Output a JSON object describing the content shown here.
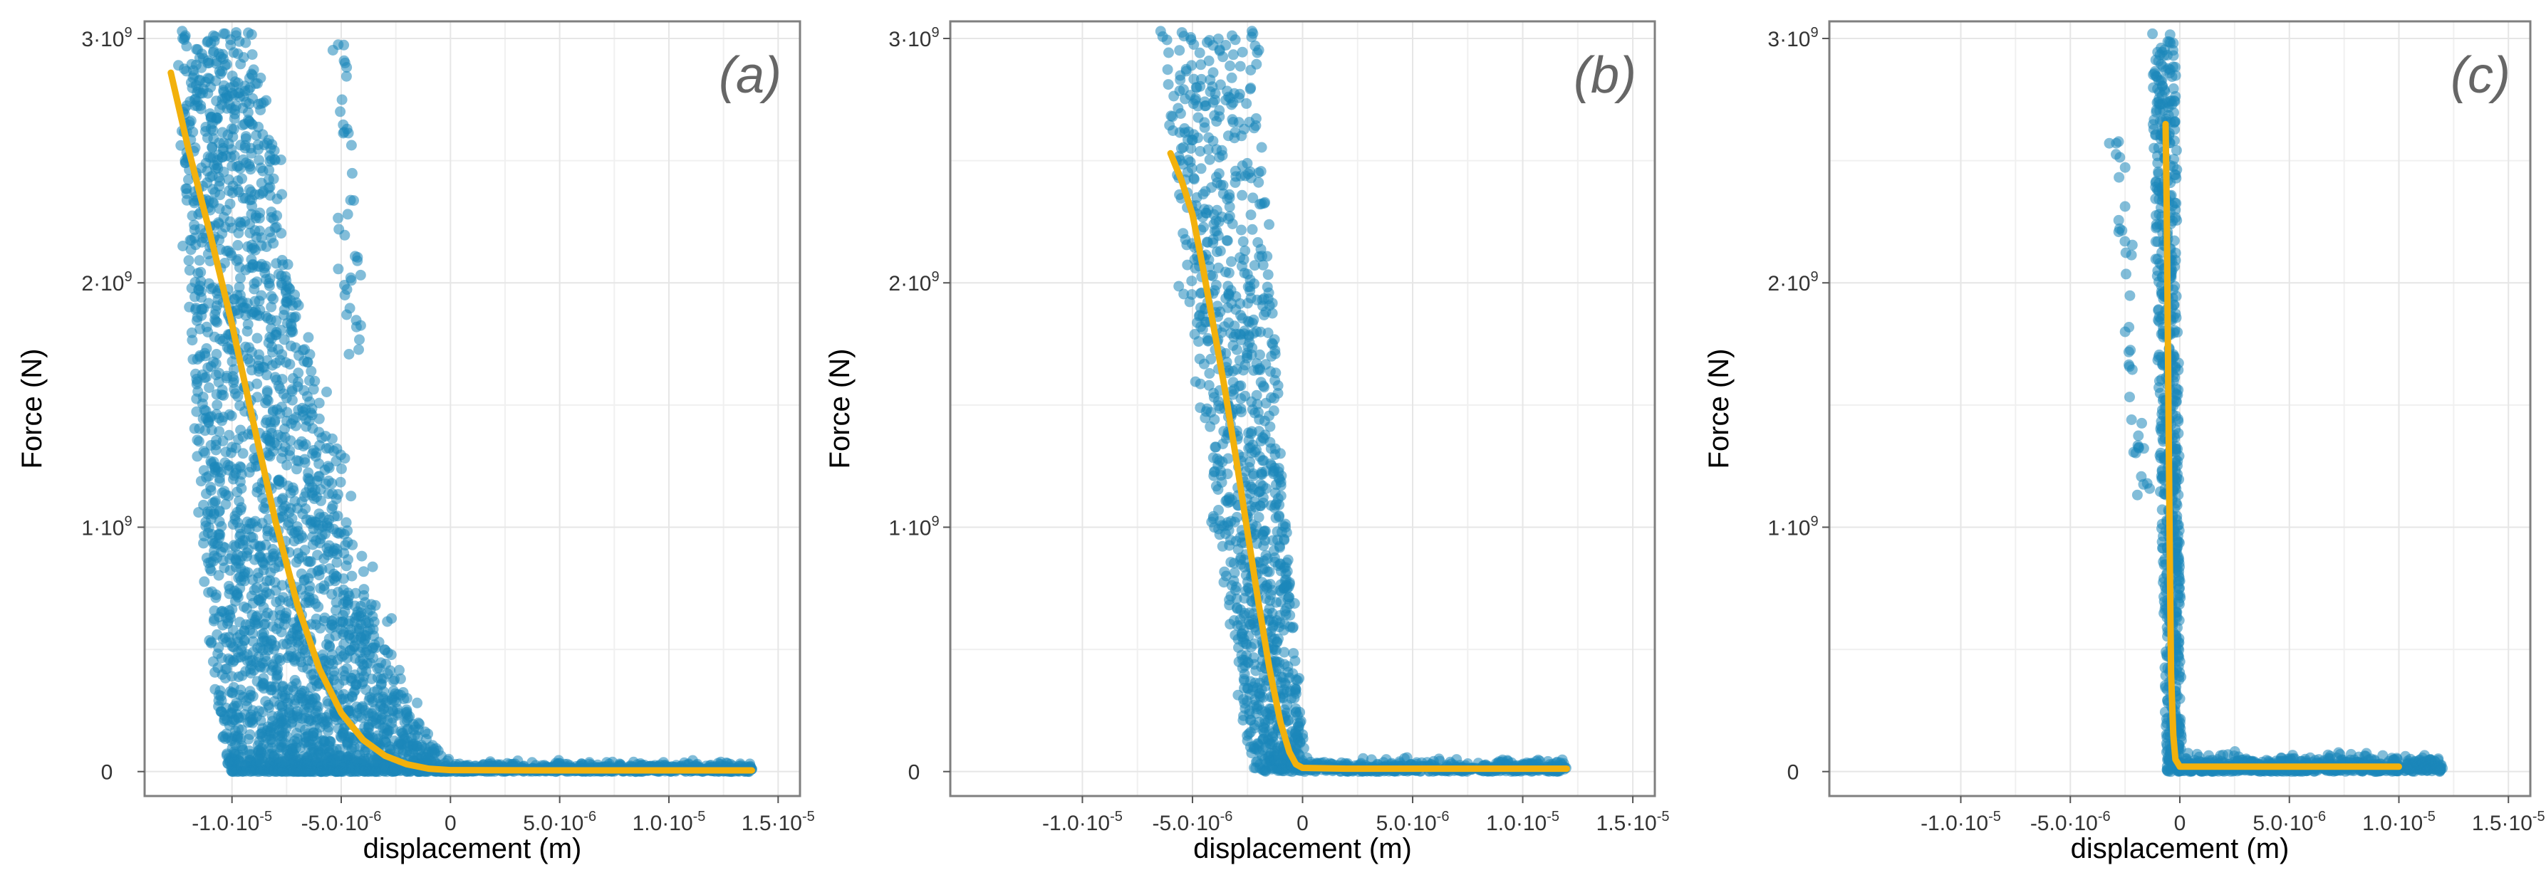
{
  "chart_data": [
    {
      "type": "scatter",
      "panel_label": "(a)",
      "xlabel": "displacement (m)",
      "ylabel": "Force (N)",
      "xlim": [
        -1.4e-05,
        1.6e-05
      ],
      "ylim": [
        -100000000.0,
        3070000000.0
      ],
      "grid": true,
      "x_ticks": [
        {
          "value": -1e-05,
          "label": "-1.0·10⁻⁵"
        },
        {
          "value": -5e-06,
          "label": "-5.0·10⁻⁶"
        },
        {
          "value": 0,
          "label": "0"
        },
        {
          "value": 5e-06,
          "label": "5.0·10⁻⁶"
        },
        {
          "value": 1e-05,
          "label": "1.0·10⁻⁵"
        },
        {
          "value": 1.5e-05,
          "label": "1.5·10⁻⁵"
        }
      ],
      "y_ticks": [
        {
          "value": 0,
          "label": "0"
        },
        {
          "value": 1000000000.0,
          "label": "1·10⁹"
        },
        {
          "value": 2000000000.0,
          "label": "2·10⁹"
        },
        {
          "value": 3000000000.0,
          "label": "3·10⁹"
        }
      ],
      "point_color": "#1b87ba",
      "fit_color": "#f2b10c",
      "point_cloud": {
        "loading_branch": {
          "count": 2600,
          "force_max": 3000000000.0,
          "x_at_force_max": [
            -1.25e-05,
            -9e-06
          ],
          "x_at_zero_force": [
            -1e-05,
            1e-06
          ],
          "shape_exponent": 1.9
        },
        "outlier_branch": {
          "count": 40,
          "x_at_force_max": -5e-06,
          "x_at_zero_force": -4.5e-06,
          "force_range": [
            1700000000.0,
            3000000000.0
          ]
        },
        "flat_branch": {
          "count": 700,
          "x_range": [
            0,
            1.38e-05
          ],
          "force_range": [
            0,
            40000000.0
          ]
        }
      },
      "fit_line": {
        "x": [
          -1.28e-05,
          -1.2e-05,
          -1.1e-05,
          -1e-05,
          -9e-06,
          -8e-06,
          -7e-06,
          -6e-06,
          -5e-06,
          -4e-06,
          -3e-06,
          -2e-06,
          -1e-06,
          0,
          5e-06,
          1e-05,
          1.38e-05
        ],
        "y": [
          2860000000.0,
          2550000000.0,
          2200000000.0,
          1830000000.0,
          1420000000.0,
          1020000000.0,
          680000000.0,
          420000000.0,
          240000000.0,
          130000000.0,
          65000000.0,
          30000000.0,
          12000000.0,
          6000000.0,
          5000000.0,
          5000000.0,
          5000000.0
        ]
      }
    },
    {
      "type": "scatter",
      "panel_label": "(b)",
      "xlabel": "displacement (m)",
      "ylabel": "Force (N)",
      "xlim": [
        -1.6e-05,
        1.6e-05
      ],
      "ylim": [
        -100000000.0,
        3070000000.0
      ],
      "grid": true,
      "x_ticks": [
        {
          "value": -1e-05,
          "label": "-1.0·10⁻⁵"
        },
        {
          "value": -5e-06,
          "label": "-5.0·10⁻⁶"
        },
        {
          "value": 0,
          "label": "0"
        },
        {
          "value": 5e-06,
          "label": "5.0·10⁻⁶"
        },
        {
          "value": 1e-05,
          "label": "1.0·10⁻⁵"
        },
        {
          "value": 1.5e-05,
          "label": "1.5·10⁻⁵"
        }
      ],
      "y_ticks": [
        {
          "value": 0,
          "label": "0"
        },
        {
          "value": 1000000000.0,
          "label": "1·10⁹"
        },
        {
          "value": 2000000000.0,
          "label": "2·10⁹"
        },
        {
          "value": 3000000000.0,
          "label": "3·10⁹"
        }
      ],
      "point_color": "#1b87ba",
      "fit_color": "#f2b10c",
      "point_cloud": {
        "loading_branch": {
          "count": 1100,
          "force_max": 3000000000.0,
          "x_at_force_max": [
            -6.5e-06,
            -2e-06
          ],
          "x_at_zero_force": [
            -2e-06,
            2e-07
          ],
          "shape_exponent": 1.2
        },
        "flat_branch": {
          "count": 500,
          "x_range": [
            0,
            1.2e-05
          ],
          "force_range": [
            0,
            50000000.0
          ]
        }
      },
      "fit_line": {
        "x": [
          -6e-06,
          -5.5e-06,
          -5e-06,
          -4.5e-06,
          -4e-06,
          -3.5e-06,
          -3e-06,
          -2.5e-06,
          -2e-06,
          -1.5e-06,
          -1e-06,
          -6e-07,
          -3e-07,
          0,
          2e-06,
          6e-06,
          1.2e-05
        ],
        "y": [
          2530000000.0,
          2420000000.0,
          2280000000.0,
          2050000000.0,
          1800000000.0,
          1550000000.0,
          1270000000.0,
          980000000.0,
          690000000.0,
          420000000.0,
          200000000.0,
          80000000.0,
          30000000.0,
          15000000.0,
          12000000.0,
          12000000.0,
          12000000.0
        ]
      }
    },
    {
      "type": "scatter",
      "panel_label": "(c)",
      "xlabel": "displacement (m)",
      "ylabel": "Force (N)",
      "xlim": [
        -1.6e-05,
        1.6e-05
      ],
      "ylim": [
        -100000000.0,
        3070000000.0
      ],
      "grid": true,
      "x_ticks": [
        {
          "value": -1e-05,
          "label": "-1.0·10⁻⁵"
        },
        {
          "value": -5e-06,
          "label": "-5.0·10⁻⁶"
        },
        {
          "value": 0,
          "label": "0"
        },
        {
          "value": 5e-06,
          "label": "5.0·10⁻⁶"
        },
        {
          "value": 1e-05,
          "label": "1.0·10⁻⁵"
        },
        {
          "value": 1.5e-05,
          "label": "1.5·10⁻⁵"
        }
      ],
      "y_ticks": [
        {
          "value": 0,
          "label": "0"
        },
        {
          "value": 1000000000.0,
          "label": "1·10⁹"
        },
        {
          "value": 2000000000.0,
          "label": "2·10⁹"
        },
        {
          "value": 3000000000.0,
          "label": "3·10⁹"
        }
      ],
      "point_color": "#1b87ba",
      "fit_color": "#f2b10c",
      "point_cloud": {
        "loading_branch": {
          "count": 700,
          "force_max": 3000000000.0,
          "x_at_force_max": [
            -1.3e-06,
            -2e-07
          ],
          "x_at_zero_force": [
            -6e-07,
            1e-07
          ],
          "shape_exponent": 1.0
        },
        "outlier_branch": {
          "count": 40,
          "x_at_force_max": -3e-06,
          "x_at_zero_force": -1.6e-06,
          "force_range": [
            1000000000.0,
            2600000000.0
          ]
        },
        "flat_branch": {
          "count": 700,
          "x_range": [
            0,
            1.2e-05
          ],
          "force_range": [
            0,
            70000000.0
          ]
        }
      },
      "fit_line": {
        "x": [
          -6.5e-07,
          -6e-07,
          -5.5e-07,
          -5e-07,
          -4.5e-07,
          -4e-07,
          -3e-07,
          -2e-07,
          0,
          2e-06,
          5e-06,
          1e-05
        ],
        "y": [
          2650000000.0,
          2300000000.0,
          1800000000.0,
          1300000000.0,
          800000000.0,
          400000000.0,
          150000000.0,
          50000000.0,
          20000000.0,
          20000000.0,
          20000000.0,
          20000000.0
        ]
      }
    }
  ]
}
